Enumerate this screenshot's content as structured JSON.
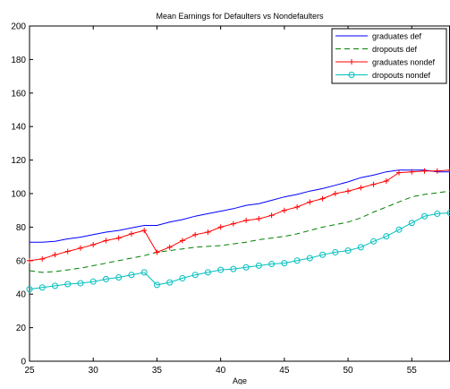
{
  "chart_data": {
    "type": "line",
    "title": "Mean  Earnings for Defaulters vs Nondefaulters",
    "xlabel": "Age",
    "ylabel": "",
    "xlim": [
      25,
      58
    ],
    "ylim": [
      0,
      200
    ],
    "xticks": [
      25,
      30,
      35,
      40,
      45,
      50,
      55
    ],
    "yticks": [
      0,
      20,
      40,
      60,
      80,
      100,
      120,
      140,
      160,
      180,
      200
    ],
    "grid": false,
    "legend_position": "top-right",
    "x": [
      25,
      26,
      27,
      28,
      29,
      30,
      31,
      32,
      33,
      34,
      35,
      36,
      37,
      38,
      39,
      40,
      41,
      42,
      43,
      44,
      45,
      46,
      47,
      48,
      49,
      50,
      51,
      52,
      53,
      54,
      55,
      56,
      57,
      58
    ],
    "series": [
      {
        "name": "graduates def",
        "color": "#0000ff",
        "line_style": "solid",
        "marker": "none",
        "values": [
          71,
          71,
          71.5,
          73,
          74,
          75.5,
          77,
          78,
          79.5,
          81,
          81,
          83,
          84.5,
          86.5,
          88,
          89.5,
          91,
          93,
          94,
          96,
          98,
          99.5,
          101.5,
          103,
          105,
          107,
          109.5,
          111,
          113,
          114,
          114,
          114,
          113,
          113
        ]
      },
      {
        "name": "dropouts def",
        "color": "#008000",
        "line_style": "dashed",
        "marker": "none",
        "values": [
          54,
          53,
          53.5,
          54.5,
          55.5,
          57,
          58.5,
          60,
          61.5,
          63,
          65,
          66,
          67,
          68,
          68.5,
          69,
          70,
          71,
          72.5,
          73.5,
          74.5,
          76,
          78,
          80,
          81.5,
          83,
          85.5,
          89,
          92,
          95,
          98,
          99.5,
          100.5,
          101.5
        ]
      },
      {
        "name": "graduates nondef",
        "color": "#ff0000",
        "line_style": "solid",
        "marker": "plus",
        "values": [
          60,
          61,
          63.5,
          65.5,
          67.5,
          69.5,
          72,
          73.5,
          76,
          78,
          65,
          68,
          72,
          75.5,
          77,
          80,
          82,
          84,
          85,
          87,
          90,
          92,
          95,
          97,
          100,
          101.5,
          103.5,
          105.5,
          107.5,
          112.5,
          113,
          113.5,
          113.5,
          114
        ]
      },
      {
        "name": "dropouts nondef",
        "color": "#00bfbf",
        "line_style": "solid",
        "marker": "circle",
        "values": [
          43,
          44,
          45,
          46,
          46.5,
          47.5,
          49,
          50,
          51.5,
          53,
          45.5,
          47,
          49.5,
          51.5,
          53,
          54.5,
          55,
          56,
          57,
          58,
          58.5,
          60,
          61.5,
          63.5,
          65,
          66,
          68,
          71.5,
          74.5,
          78.5,
          82.5,
          86.5,
          88,
          88.5
        ]
      }
    ]
  }
}
